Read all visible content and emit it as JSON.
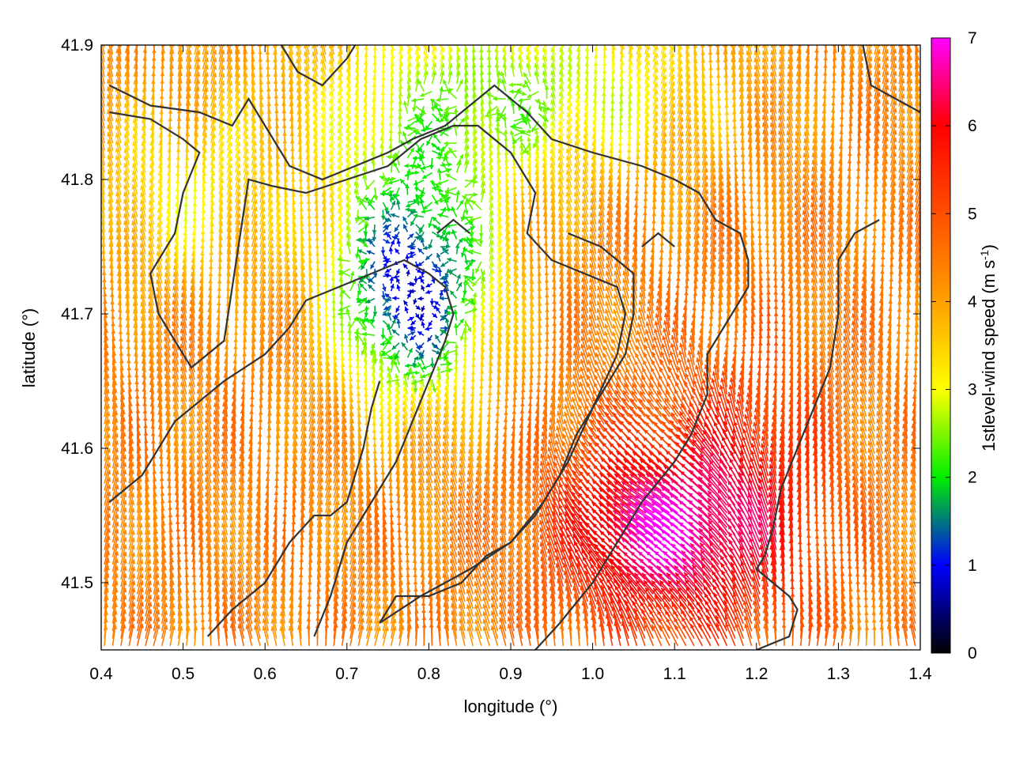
{
  "chart_data": {
    "type": "vector-field",
    "xlabel": "longitude (°)",
    "ylabel": "latitude (°)",
    "xlim": [
      0.4,
      1.4
    ],
    "ylim": [
      41.45,
      41.9
    ],
    "xticks": [
      "0.4",
      "0.5",
      "0.6",
      "0.7",
      "0.8",
      "0.9",
      "1.0",
      "1.1",
      "1.2",
      "1.3",
      "1.4"
    ],
    "yticks": [
      "41.5",
      "41.6",
      "41.7",
      "41.8",
      "41.9"
    ],
    "colorbar": {
      "label_main": "1stlevel-wind speed (m s",
      "label_exp": "-1",
      "label_end": ")",
      "range": [
        0,
        7
      ],
      "ticks": [
        "0",
        "1",
        "2",
        "3",
        "4",
        "5",
        "6",
        "7"
      ],
      "stops": [
        {
          "v": 0,
          "color": "#000000"
        },
        {
          "v": 1,
          "color": "#0000ff"
        },
        {
          "v": 2,
          "color": "#00ee00"
        },
        {
          "v": 3,
          "color": "#ffff00"
        },
        {
          "v": 4,
          "color": "#ffa000"
        },
        {
          "v": 5,
          "color": "#ff5000"
        },
        {
          "v": 6,
          "color": "#ff0000"
        },
        {
          "v": 7,
          "color": "#ff00ff"
        }
      ]
    },
    "grid": false,
    "legend": "colorbar-right",
    "contours": [
      [
        [
          0.41,
          41.87
        ],
        [
          0.46,
          41.855
        ],
        [
          0.52,
          41.85
        ],
        [
          0.56,
          41.84
        ],
        [
          0.58,
          41.86
        ],
        [
          0.6,
          41.84
        ],
        [
          0.63,
          41.81
        ],
        [
          0.67,
          41.8
        ],
        [
          0.71,
          41.81
        ],
        [
          0.75,
          41.82
        ],
        [
          0.78,
          41.83
        ],
        [
          0.82,
          41.84
        ],
        [
          0.84,
          41.85
        ],
        [
          0.88,
          41.87
        ],
        [
          0.92,
          41.85
        ],
        [
          0.95,
          41.83
        ],
        [
          1.0,
          41.82
        ],
        [
          1.06,
          41.81
        ],
        [
          1.1,
          41.8
        ],
        [
          1.13,
          41.79
        ],
        [
          1.15,
          41.77
        ],
        [
          1.18,
          41.76
        ],
        [
          1.19,
          41.74
        ],
        [
          1.19,
          41.72
        ],
        [
          1.18,
          41.71
        ],
        [
          1.16,
          41.69
        ],
        [
          1.14,
          41.67
        ],
        [
          1.14,
          41.64
        ],
        [
          1.12,
          41.61
        ],
        [
          1.1,
          41.59
        ],
        [
          1.06,
          41.56
        ],
        [
          1.03,
          41.53
        ],
        [
          1.0,
          41.5
        ],
        [
          0.96,
          41.47
        ],
        [
          0.93,
          41.45
        ]
      ],
      [
        [
          0.41,
          41.85
        ],
        [
          0.46,
          41.845
        ],
        [
          0.5,
          41.83
        ],
        [
          0.52,
          41.82
        ],
        [
          0.5,
          41.79
        ],
        [
          0.49,
          41.76
        ],
        [
          0.46,
          41.73
        ],
        [
          0.47,
          41.7
        ],
        [
          0.51,
          41.66
        ],
        [
          0.55,
          41.68
        ],
        [
          0.56,
          41.72
        ],
        [
          0.57,
          41.76
        ],
        [
          0.58,
          41.8
        ],
        [
          0.61,
          41.795
        ],
        [
          0.65,
          41.79
        ],
        [
          0.7,
          41.8
        ],
        [
          0.75,
          41.81
        ],
        [
          0.79,
          41.83
        ],
        [
          0.83,
          41.84
        ],
        [
          0.86,
          41.84
        ],
        [
          0.88,
          41.83
        ],
        [
          0.9,
          41.82
        ],
        [
          0.93,
          41.79
        ],
        [
          0.92,
          41.76
        ],
        [
          0.95,
          41.74
        ],
        [
          0.99,
          41.73
        ],
        [
          1.03,
          41.72
        ],
        [
          1.04,
          41.7
        ],
        [
          1.03,
          41.67
        ],
        [
          1.0,
          41.63
        ],
        [
          0.97,
          41.59
        ],
        [
          0.94,
          41.56
        ],
        [
          0.9,
          41.53
        ],
        [
          0.85,
          41.51
        ],
        [
          0.79,
          41.49
        ],
        [
          0.74,
          41.47
        ]
      ],
      [
        [
          0.41,
          41.56
        ],
        [
          0.45,
          41.58
        ],
        [
          0.49,
          41.62
        ],
        [
          0.55,
          41.65
        ],
        [
          0.6,
          41.67
        ],
        [
          0.63,
          41.69
        ],
        [
          0.65,
          41.71
        ],
        [
          0.69,
          41.72
        ],
        [
          0.73,
          41.73
        ],
        [
          0.77,
          41.74
        ],
        [
          0.8,
          41.73
        ],
        [
          0.82,
          41.72
        ],
        [
          0.83,
          41.7
        ],
        [
          0.82,
          41.68
        ],
        [
          0.8,
          41.65
        ],
        [
          0.78,
          41.62
        ],
        [
          0.76,
          41.59
        ],
        [
          0.73,
          41.56
        ],
        [
          0.7,
          41.53
        ],
        [
          0.68,
          41.49
        ],
        [
          0.66,
          41.46
        ]
      ],
      [
        [
          0.74,
          41.47
        ],
        [
          0.76,
          41.49
        ],
        [
          0.8,
          41.49
        ],
        [
          0.84,
          41.5
        ],
        [
          0.87,
          41.52
        ],
        [
          0.9,
          41.53
        ],
        [
          0.93,
          41.55
        ],
        [
          0.96,
          41.58
        ],
        [
          0.98,
          41.61
        ],
        [
          1.01,
          41.64
        ],
        [
          1.04,
          41.67
        ],
        [
          1.05,
          41.7
        ],
        [
          1.05,
          41.73
        ],
        [
          1.01,
          41.75
        ],
        [
          0.97,
          41.76
        ]
      ],
      [
        [
          1.35,
          41.77
        ],
        [
          1.32,
          41.76
        ],
        [
          1.3,
          41.74
        ],
        [
          1.3,
          41.7
        ],
        [
          1.29,
          41.66
        ],
        [
          1.27,
          41.63
        ],
        [
          1.25,
          41.6
        ],
        [
          1.23,
          41.57
        ],
        [
          1.22,
          41.54
        ],
        [
          1.21,
          41.52
        ],
        [
          1.2,
          41.51
        ],
        [
          1.22,
          41.5
        ],
        [
          1.24,
          41.49
        ],
        [
          1.25,
          41.48
        ],
        [
          1.24,
          41.46
        ],
        [
          1.2,
          41.45
        ]
      ],
      [
        [
          0.53,
          41.46
        ],
        [
          0.56,
          41.48
        ],
        [
          0.6,
          41.5
        ],
        [
          0.63,
          41.53
        ],
        [
          0.66,
          41.55
        ],
        [
          0.68,
          41.55
        ],
        [
          0.7,
          41.56
        ],
        [
          0.72,
          41.6
        ],
        [
          0.73,
          41.63
        ],
        [
          0.74,
          41.65
        ]
      ],
      [
        [
          0.62,
          41.9
        ],
        [
          0.64,
          41.88
        ],
        [
          0.67,
          41.87
        ],
        [
          0.7,
          41.89
        ],
        [
          0.71,
          41.9
        ]
      ],
      [
        [
          1.33,
          41.9
        ],
        [
          1.34,
          41.87
        ],
        [
          1.37,
          41.86
        ],
        [
          1.4,
          41.85
        ]
      ],
      [
        [
          0.81,
          41.76
        ],
        [
          0.83,
          41.77
        ],
        [
          0.85,
          41.76
        ]
      ],
      [
        [
          1.06,
          41.75
        ],
        [
          1.08,
          41.76
        ],
        [
          1.1,
          41.75
        ]
      ]
    ]
  }
}
